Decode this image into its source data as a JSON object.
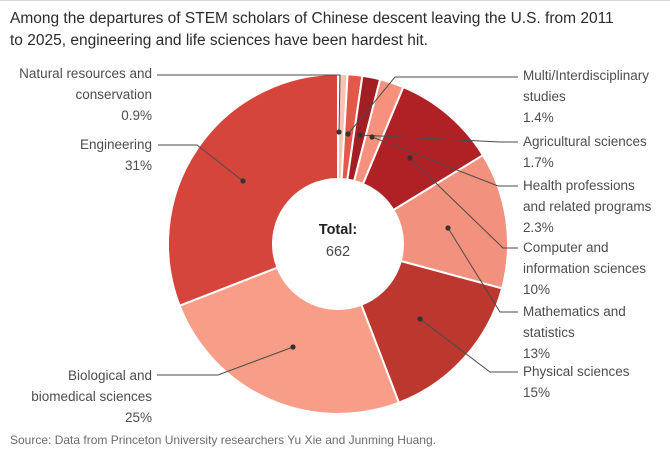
{
  "title_lines": [
    "Among the departures of STEM scholars of Chinese descent leaving the U.S. from 2011",
    "to 2025, engineering and life sciences have been hardest hit."
  ],
  "source": "Source: Data from Princeton University researchers Yu Xie and Junming Huang.",
  "chart_data": {
    "type": "pie",
    "subtype": "donut",
    "title": "Among the departures of STEM scholars of Chinese descent leaving the U.S. from 2011 to 2025, engineering and life sciences have been hardest hit.",
    "center_label": "Total:",
    "center_value": "662",
    "units": "percent",
    "start_angle": "12 o'clock, clockwise",
    "legend_position": "callout-labels",
    "segments": [
      {
        "id": "natural-resources",
        "label": "Natural resources and conservation",
        "display": "0.9%",
        "value": 0.9,
        "color": "#f6c3b4"
      },
      {
        "id": "multi-interdisciplinary",
        "label": "Multi/Interdisciplinary studies",
        "display": "1.4%",
        "value": 1.4,
        "color": "#e25849"
      },
      {
        "id": "agricultural-sciences",
        "label": "Agricultural sciences",
        "display": "1.7%",
        "value": 1.7,
        "color": "#a31e22"
      },
      {
        "id": "health-professions",
        "label": "Health professions and related programs",
        "display": "2.3%",
        "value": 2.3,
        "color": "#f5917d"
      },
      {
        "id": "computer-information",
        "label": "Computer and information sciences",
        "display": "10%",
        "value": 10,
        "color": "#b02125"
      },
      {
        "id": "mathematics-statistics",
        "label": "Mathematics and statistics",
        "display": "13%",
        "value": 13,
        "color": "#f2917d"
      },
      {
        "id": "physical-sciences",
        "label": "Physical sciences",
        "display": "15%",
        "value": 15,
        "color": "#bc372e"
      },
      {
        "id": "biological-biomedical",
        "label": "Biological and biomedical sciences",
        "display": "25%",
        "value": 25,
        "color": "#f89e88"
      },
      {
        "id": "engineering",
        "label": "Engineering",
        "display": "31%",
        "value": 31,
        "color": "#d5453b"
      }
    ]
  }
}
